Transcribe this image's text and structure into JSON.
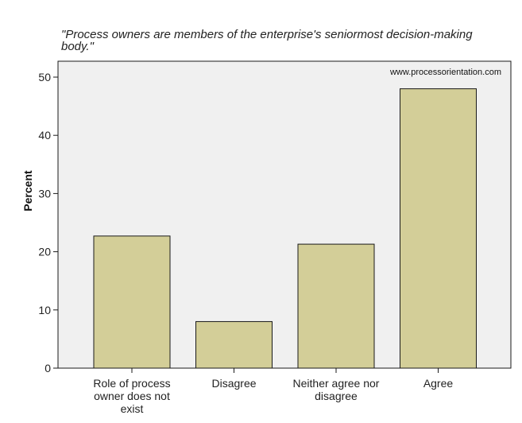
{
  "chart_data": {
    "type": "bar",
    "title_lines": [
      "\"Process owners are members of the enterprise's seniormost decision-making",
      "body.\""
    ],
    "ylabel": "Percent",
    "xlabel": "",
    "ylim": [
      0,
      50
    ],
    "yticks": [
      0,
      10,
      20,
      30,
      40,
      50
    ],
    "categories": [
      [
        "Role of process",
        "owner does not",
        "exist"
      ],
      [
        "Disagree"
      ],
      [
        "Neither agree nor",
        "disagree"
      ],
      [
        "Agree"
      ]
    ],
    "values": [
      22.7,
      8.0,
      21.3,
      48.0
    ],
    "watermark": "www.processorientation.com",
    "colors": {
      "bar_fill": "#d3ce98",
      "bar_stroke": "#1a1a1a",
      "plot_background": "#f0f0f0",
      "axis": "#1a1a1a"
    }
  }
}
